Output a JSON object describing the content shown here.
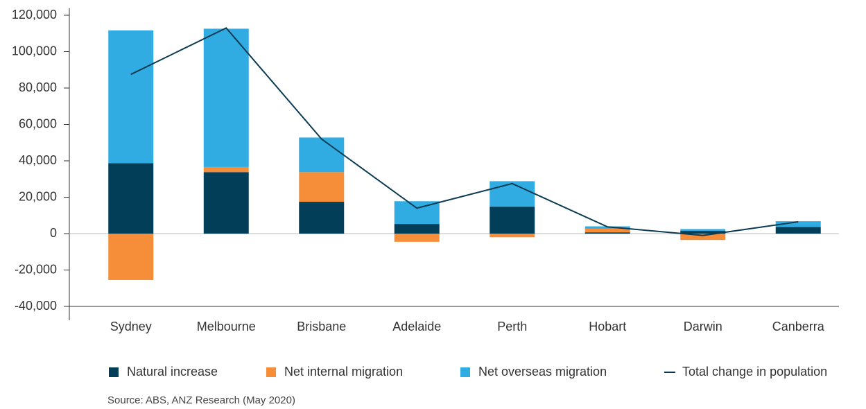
{
  "chart_data": {
    "type": "bar",
    "categories": [
      "Sydney",
      "Melbourne",
      "Brisbane",
      "Adelaide",
      "Perth",
      "Hobart",
      "Darwin",
      "Canberra"
    ],
    "series": [
      {
        "name": "Natural increase",
        "color": "#023e58",
        "type": "bar",
        "values": [
          38700,
          33800,
          17500,
          5300,
          14800,
          700,
          1500,
          3700
        ]
      },
      {
        "name": "Net internal migration",
        "color": "#f68d38",
        "type": "bar",
        "values": [
          -25500,
          2800,
          16300,
          -4500,
          -2000,
          2000,
          -3500,
          0
        ]
      },
      {
        "name": "Net overseas migration",
        "color": "#31ace2",
        "type": "bar",
        "values": [
          73000,
          76000,
          19000,
          12500,
          14000,
          1300,
          1000,
          3100
        ]
      },
      {
        "name": "Total change in population",
        "color": "#0c3b52",
        "type": "line",
        "values": [
          87500,
          113000,
          52000,
          14000,
          27500,
          3700,
          -1000,
          6500
        ]
      }
    ],
    "ylim": [
      -40000,
      120000
    ],
    "yticks": [
      {
        "value": -40000,
        "label": "-40,000"
      },
      {
        "value": -20000,
        "label": "-20,000"
      },
      0,
      {
        "value": 20000,
        "label": "20,000"
      },
      {
        "value": 40000,
        "label": "40,000"
      },
      {
        "value": 60000,
        "label": "60,000"
      },
      {
        "value": 80000,
        "label": "80,000"
      },
      {
        "value": 100000,
        "label": "100,000"
      },
      {
        "value": 120000,
        "label": "120,000"
      }
    ],
    "source": "Source: ABS, ANZ Research (May 2020)"
  }
}
